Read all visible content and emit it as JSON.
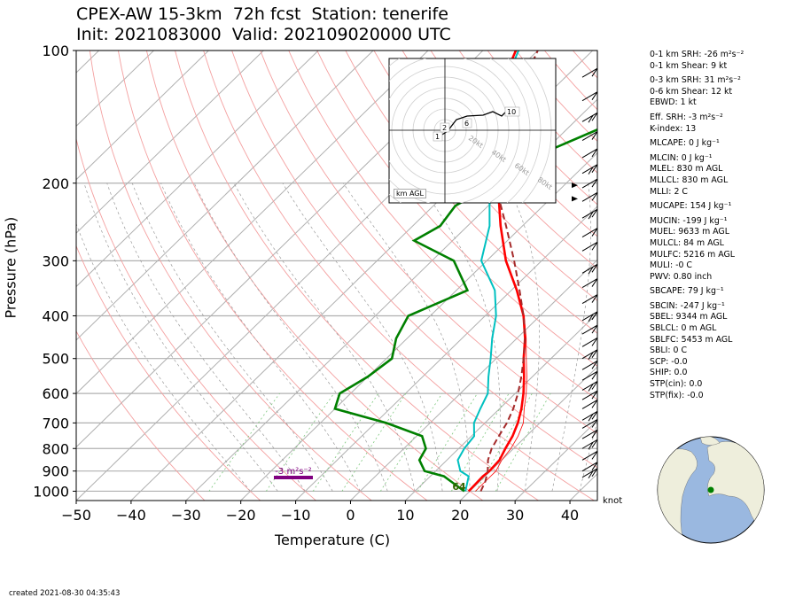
{
  "header": {
    "title_line1": "CPEX-AW 15-3km  72h fcst  Station: tenerife",
    "title_line2": "Init: 2021083000  Valid: 202109020000 UTC"
  },
  "chart_data": {
    "type": "line",
    "subtype": "skew-T log-P diagram",
    "xlabel": "Temperature (C)",
    "ylabel": "Pressure (hPa)",
    "x_ticks": [
      -50,
      -40,
      -30,
      -20,
      -10,
      0,
      10,
      20,
      30,
      40
    ],
    "y_ticks": [
      100,
      200,
      300,
      400,
      500,
      600,
      700,
      800,
      900,
      1000
    ],
    "xlim": [
      -50,
      45
    ],
    "ylim_hpa": [
      1050,
      100
    ],
    "y_scale": "log",
    "grid": true,
    "series": [
      {
        "key": "temperature",
        "color": "#ff0000",
        "points": [
          [
            1000,
            19.8
          ],
          [
            925,
            19.6
          ],
          [
            900,
            19.8
          ],
          [
            850,
            19.6
          ],
          [
            800,
            18.5
          ],
          [
            750,
            17.5
          ],
          [
            700,
            16.0
          ],
          [
            650,
            14.0
          ],
          [
            600,
            11.5
          ],
          [
            550,
            8.5
          ],
          [
            500,
            5.0
          ],
          [
            450,
            1.5
          ],
          [
            400,
            -3.0
          ],
          [
            350,
            -9.0
          ],
          [
            300,
            -16.5
          ],
          [
            250,
            -24.0
          ],
          [
            200,
            -32.5
          ],
          [
            175,
            -37.5
          ],
          [
            150,
            -42.5
          ],
          [
            125,
            -48.5
          ],
          [
            110,
            -52.0
          ],
          [
            100,
            -54.0
          ]
        ]
      },
      {
        "key": "virtual_temperature",
        "color": "#ff0000",
        "points": [
          [
            1000,
            21.0
          ],
          [
            925,
            21.0
          ],
          [
            900,
            21.0
          ],
          [
            850,
            20.0
          ],
          [
            800,
            19.5
          ],
          [
            750,
            18.5
          ],
          [
            700,
            17.0
          ],
          [
            650,
            14.5
          ],
          [
            600,
            12.0
          ],
          [
            550,
            9.0
          ],
          [
            500,
            5.5
          ],
          [
            450,
            1.7
          ],
          [
            400,
            -2.9
          ],
          [
            350,
            -8.9
          ],
          [
            300,
            -16.4
          ],
          [
            250,
            -24.0
          ],
          [
            200,
            -32.5
          ],
          [
            175,
            -37.5
          ],
          [
            150,
            -42.5
          ],
          [
            125,
            -48.5
          ],
          [
            110,
            -52.0
          ],
          [
            100,
            -54.0
          ]
        ]
      },
      {
        "key": "wet_bulb",
        "color": "#00c0c0",
        "points": [
          [
            1000,
            19.2
          ],
          [
            925,
            17.0
          ],
          [
            900,
            14.5
          ],
          [
            850,
            12.0
          ],
          [
            800,
            11.0
          ],
          [
            750,
            10.5
          ],
          [
            700,
            8.0
          ],
          [
            650,
            6.5
          ],
          [
            600,
            5.0
          ],
          [
            550,
            2.0
          ],
          [
            500,
            -1.0
          ],
          [
            450,
            -4.5
          ],
          [
            400,
            -8.0
          ],
          [
            350,
            -13.0
          ],
          [
            300,
            -21.0
          ],
          [
            250,
            -26.0
          ],
          [
            200,
            -34.0
          ],
          [
            175,
            -38.5
          ],
          [
            150,
            -44.0
          ],
          [
            125,
            -48.5
          ],
          [
            110,
            -51.5
          ],
          [
            100,
            -53.5
          ]
        ]
      },
      {
        "key": "dewpoint",
        "color": "#008000",
        "points": [
          [
            1000,
            19.0
          ],
          [
            925,
            12.5
          ],
          [
            900,
            8.0
          ],
          [
            850,
            5.0
          ],
          [
            800,
            4.0
          ],
          [
            750,
            1.0
          ],
          [
            700,
            -8.0
          ],
          [
            650,
            -20.0
          ],
          [
            600,
            -22.0
          ],
          [
            550,
            -20.0
          ],
          [
            500,
            -19.0
          ],
          [
            450,
            -22.0
          ],
          [
            400,
            -24.0
          ],
          [
            350,
            -18.0
          ],
          [
            300,
            -26.0
          ],
          [
            270,
            -37.0
          ],
          [
            250,
            -35.0
          ],
          [
            225,
            -36.0
          ],
          [
            200,
            -33.0
          ],
          [
            175,
            -31.0
          ],
          [
            150,
            -24.0
          ],
          [
            125,
            -28.0
          ],
          [
            110,
            -30.0
          ],
          [
            100,
            -31.0
          ]
        ]
      },
      {
        "key": "parcel_path",
        "color": "#a52a2a",
        "style": "dashed",
        "points": [
          [
            1000,
            22.0
          ],
          [
            950,
            21.0
          ],
          [
            900,
            19.5
          ],
          [
            850,
            17.5
          ],
          [
            800,
            16.0
          ],
          [
            750,
            15.0
          ],
          [
            700,
            14.0
          ],
          [
            650,
            12.5
          ],
          [
            600,
            10.5
          ],
          [
            550,
            8.0
          ],
          [
            500,
            5.0
          ],
          [
            450,
            1.5
          ],
          [
            400,
            -3.0
          ],
          [
            350,
            -8.5
          ],
          [
            300,
            -15.0
          ],
          [
            250,
            -23.0
          ],
          [
            200,
            -33.0
          ],
          [
            150,
            -42.0
          ],
          [
            100,
            -50.0
          ]
        ]
      }
    ],
    "annotations": {
      "srh_label": "-3 m²s⁻²",
      "surface_dewpoint_label": "64"
    },
    "wind_units": "knot",
    "hodograph": {
      "ring_labels": [
        "20kt",
        "40kt",
        "60kt",
        "80kt"
      ],
      "height_labels": [
        "1",
        "2",
        "6",
        "10"
      ],
      "legend": "km AGL"
    }
  },
  "parameters": [
    "0-1 km SRH: -26 m²s⁻²",
    "0-1 km Shear: 9 kt",
    "0-3 km SRH: 31 m²s⁻²",
    "0-6 km Shear: 12 kt",
    "EBWD: 1 kt",
    "Eff. SRH: -3 m²s⁻²",
    "K-index: 13",
    "MLCAPE: 0 J kg⁻¹",
    "MLCIN: 0 J kg⁻¹",
    "MLEL: 830 m AGL",
    "MLLCL: 830 m AGL",
    "MLLI: 2 C",
    "MUCAPE: 154 J kg⁻¹",
    "MUCIN: -199 J kg⁻¹",
    "MUEL: 9633 m AGL",
    "MULCL: 84 m AGL",
    "MULFC: 5216 m AGL",
    "MULI: -0 C",
    "PWV: 0.80 inch",
    "SBCAPE: 79 J kg⁻¹",
    "SBCIN: -247 J kg⁻¹",
    "SBEL: 9344 m AGL",
    "SBLCL: 0 m AGL",
    "SBLFC: 5453 m AGL",
    "SBLI: 0 C",
    "SCP: -0.0",
    "SHIP: 0.0",
    "STP(cin): 0.0",
    "STP(fix): -0.0"
  ],
  "footer": {
    "created": "created 2021-08-30 04:35:43"
  },
  "colors": {
    "temperature": "#ff0000",
    "dewpoint": "#008000",
    "wet_bulb": "#00c0c0",
    "parcel": "#a52a2a",
    "srh_bar": "#800080",
    "ocean": "#9ab8e0",
    "land": "#eeeedc",
    "station_marker": "#008000"
  }
}
